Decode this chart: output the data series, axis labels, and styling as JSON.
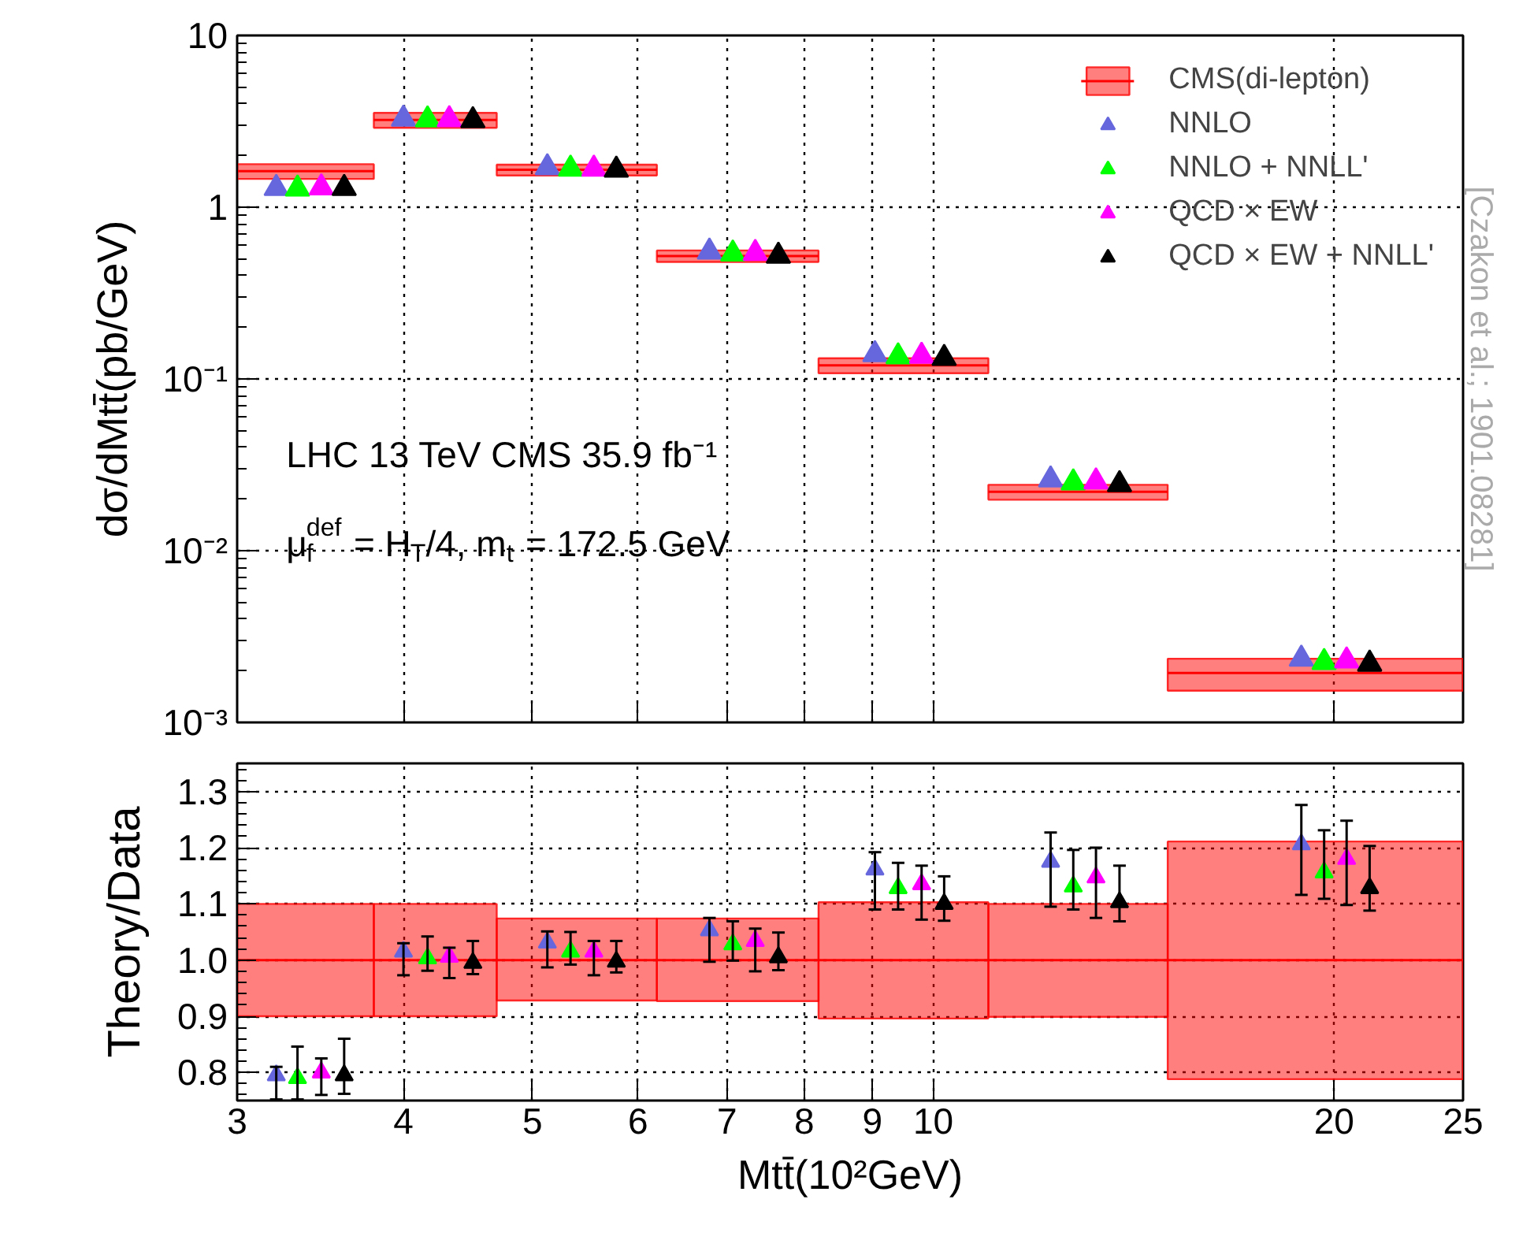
{
  "chart_data": [
    {
      "type": "scatter",
      "xlim": [
        3,
        25
      ],
      "ylim": [
        0.001,
        10
      ],
      "log": "xy",
      "xticks": [
        3,
        4,
        5,
        6,
        7,
        8,
        9,
        10,
        20,
        25
      ],
      "yticks": [
        {
          "value": 0.001,
          "label": "10⁻³"
        },
        {
          "value": 0.01,
          "label": "10⁻²"
        },
        {
          "value": 0.1,
          "label": "10⁻¹"
        },
        1,
        10
      ],
      "tick_labels": "y",
      "grid": true,
      "legend": "top right",
      "marker": "triangle",
      "ylabel": "dσ/dMtt̄(pb/GeV)",
      "annotations": [
        "LHC 13 TeV CMS 35.9 fb⁻¹",
        "μ$_{f}$$^{def}$ = H$_{T}$/4, m$_{t}$ = 172.5 GeV",
        "[Czakon et al.; 1901.08281]"
      ],
      "series": [
        {
          "name": "CMS(di-lepton)",
          "type": "line",
          "marker": "none",
          "color": "#ff0000",
          "x": [
            3,
            3.8
          ],
          "values": [
            1.62,
            1.62
          ],
          "lower": [
            1.46,
            1.46
          ],
          "upper": [
            1.78,
            1.78
          ]
        },
        {
          "type": "line",
          "marker": "none",
          "color": "#ff0000",
          "x": [
            3.8,
            4.7
          ],
          "values": [
            3.22,
            3.22
          ],
          "lower": [
            2.9,
            2.9
          ],
          "upper": [
            3.54,
            3.54
          ]
        },
        {
          "type": "line",
          "marker": "none",
          "color": "#ff0000",
          "x": [
            4.7,
            6.2
          ],
          "values": [
            1.65,
            1.65
          ],
          "lower": [
            1.53,
            1.53
          ],
          "upper": [
            1.77,
            1.77
          ]
        },
        {
          "type": "line",
          "marker": "none",
          "color": "#ff0000",
          "x": [
            6.2,
            8.2
          ],
          "values": [
            0.52,
            0.52
          ],
          "lower": [
            0.48,
            0.48
          ],
          "upper": [
            0.56,
            0.56
          ]
        },
        {
          "type": "line",
          "marker": "none",
          "color": "#ff0000",
          "x": [
            8.2,
            11
          ],
          "values": [
            0.12,
            0.12
          ],
          "lower": [
            0.108,
            0.108
          ],
          "upper": [
            0.132,
            0.132
          ]
        },
        {
          "type": "line",
          "marker": "none",
          "color": "#ff0000",
          "x": [
            11,
            15
          ],
          "values": [
            0.022,
            0.022
          ],
          "lower": [
            0.0198,
            0.0198
          ],
          "upper": [
            0.0242,
            0.0242
          ]
        },
        {
          "type": "line",
          "marker": "none",
          "color": "#ff0000",
          "x": [
            15,
            25
          ],
          "values": [
            0.00194,
            0.00194
          ],
          "lower": [
            0.00153,
            0.00153
          ],
          "upper": [
            0.00235,
            0.00235
          ]
        },
        {
          "name": "NNLO",
          "color": "#6666dd",
          "x": [
            3.21,
            4.0,
            5.13,
            6.79,
            9.04,
            12.25,
            18.9
          ],
          "values": [
            1.29,
            3.27,
            1.7,
            0.55,
            0.139,
            0.0259,
            0.00234
          ]
        },
        {
          "name": "NNLO + NNLL'",
          "color": "#00ff00",
          "x": [
            3.33,
            4.17,
            5.34,
            7.07,
            9.41,
            12.74,
            19.66
          ],
          "values": [
            1.28,
            3.23,
            1.67,
            0.535,
            0.135,
            0.0249,
            0.00224
          ]
        },
        {
          "name": "QCD × EW",
          "color": "#ff00ff",
          "x": [
            3.47,
            4.33,
            5.56,
            7.35,
            9.8,
            13.25,
            20.44
          ],
          "values": [
            1.3,
            3.24,
            1.67,
            0.54,
            0.136,
            0.0252,
            0.00229
          ]
        },
        {
          "name": "QCD × EW + NNLL'",
          "color": "#000000",
          "x": [
            3.61,
            4.51,
            5.78,
            7.65,
            10.19,
            13.8,
            21.27
          ],
          "values": [
            1.29,
            3.2,
            1.65,
            0.52,
            0.132,
            0.0243,
            0.00219
          ]
        }
      ]
    },
    {
      "type": "scatter",
      "xlim": [
        3,
        25
      ],
      "ylim": [
        0.75,
        1.35
      ],
      "log": "x",
      "xticks": [
        3,
        4,
        5,
        6,
        7,
        8,
        9,
        10,
        20,
        25
      ],
      "yticks": [
        0.8,
        0.9,
        {
          "value": 1.0,
          "label": "1.0"
        },
        1.1,
        1.2,
        1.3
      ],
      "grid": true,
      "marker": "triangle",
      "ylabel": "Theory/Data",
      "xlabel": "Mtt̄(10²GeV)",
      "series": [
        {
          "type": "line",
          "marker": "none",
          "color": "#ff0000",
          "x": [
            3,
            3.8,
            3.8,
            4.7,
            4.7,
            6.2,
            6.2,
            8.2,
            8.2,
            11,
            11,
            15,
            15,
            25
          ],
          "values": [
            1,
            1,
            1,
            1,
            1,
            1,
            1,
            1,
            1,
            1,
            1,
            1,
            1,
            1
          ],
          "lower": [
            0.9,
            0.9,
            0.9,
            0.9,
            0.928,
            0.928,
            0.927,
            0.927,
            0.896,
            0.896,
            0.899,
            0.899,
            0.788,
            0.788
          ],
          "upper": [
            1.1,
            1.1,
            1.1,
            1.1,
            1.074,
            1.074,
            1.074,
            1.074,
            1.103,
            1.103,
            1.1,
            1.1,
            1.211,
            1.211
          ]
        },
        {
          "color": "#6666dd",
          "x": [
            3.21,
            4.0,
            5.13,
            6.79,
            9.04,
            12.25,
            18.9
          ],
          "values": [
            0.795,
            1.015,
            1.031,
            1.053,
            1.161,
            1.175,
            1.206
          ],
          "errors": [
            [
              0.752,
              0.81
            ],
            [
              0.973,
              1.03
            ],
            [
              0.987,
              1.051
            ],
            [
              0.997,
              1.075
            ],
            [
              1.09,
              1.192
            ],
            [
              1.095,
              1.227
            ],
            [
              1.116,
              1.276
            ]
          ]
        },
        {
          "color": "#00ff00",
          "x": [
            3.33,
            4.17,
            5.34,
            7.07,
            9.41,
            12.74,
            19.66
          ],
          "values": [
            0.79,
            1.003,
            1.015,
            1.028,
            1.128,
            1.131,
            1.156
          ],
          "errors": [
            [
              0.752,
              0.846
            ],
            [
              0.981,
              1.042
            ],
            [
              0.992,
              1.05
            ],
            [
              0.999,
              1.069
            ],
            [
              1.09,
              1.173
            ],
            [
              1.09,
              1.196
            ],
            [
              1.109,
              1.231
            ]
          ]
        },
        {
          "color": "#ff00ff",
          "x": [
            3.47,
            4.33,
            5.56,
            7.35,
            9.8,
            13.25,
            20.44
          ],
          "values": [
            0.8,
            1.006,
            1.015,
            1.034,
            1.135,
            1.147,
            1.18
          ],
          "errors": [
            [
              0.76,
              0.825
            ],
            [
              0.968,
              1.022
            ],
            [
              0.973,
              1.034
            ],
            [
              0.98,
              1.056
            ],
            [
              1.072,
              1.168
            ],
            [
              1.075,
              1.2
            ],
            [
              1.098,
              1.248
            ]
          ]
        },
        {
          "color": "#000000",
          "x": [
            3.61,
            4.51,
            5.78,
            7.65,
            10.19,
            13.8,
            21.27
          ],
          "values": [
            0.795,
            0.995,
            0.997,
            1.005,
            1.1,
            1.103,
            1.128
          ],
          "errors": [
            [
              0.762,
              0.86
            ],
            [
              0.975,
              1.034
            ],
            [
              0.978,
              1.034
            ],
            [
              0.982,
              1.049
            ],
            [
              1.07,
              1.149
            ],
            [
              1.069,
              1.168
            ],
            [
              1.088,
              1.203
            ]
          ]
        }
      ]
    }
  ]
}
